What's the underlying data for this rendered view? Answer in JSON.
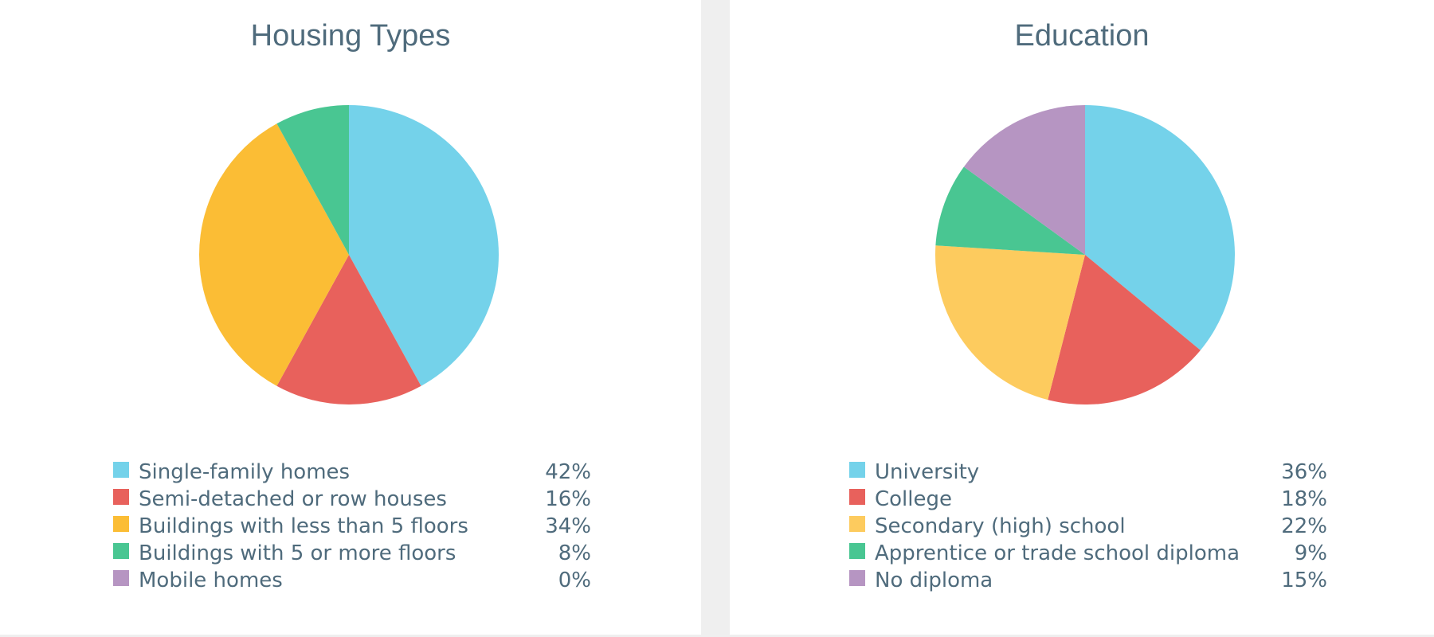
{
  "chart_data": [
    {
      "type": "pie",
      "title": "Housing Types",
      "slices": [
        {
          "label": "Single-family homes",
          "value": 42,
          "display": "42%",
          "color": "#74d2ea"
        },
        {
          "label": "Semi-detached or row houses",
          "value": 16,
          "display": "16%",
          "color": "#e8615c"
        },
        {
          "label": "Buildings with less than 5 floors",
          "value": 34,
          "display": "34%",
          "color": "#fbbd35"
        },
        {
          "label": "Buildings with 5 or more floors",
          "value": 8,
          "display": "8%",
          "color": "#49c692"
        },
        {
          "label": "Mobile homes",
          "value": 0,
          "display": "0%",
          "color": "#b695c2"
        }
      ],
      "legend_position": "bottom"
    },
    {
      "type": "pie",
      "title": "Education",
      "slices": [
        {
          "label": "University",
          "value": 36,
          "display": "36%",
          "color": "#74d2ea"
        },
        {
          "label": "College",
          "value": 18,
          "display": "18%",
          "color": "#e8615c"
        },
        {
          "label": "Secondary (high) school",
          "value": 22,
          "display": "22%",
          "color": "#fdcb5e"
        },
        {
          "label": "Apprentice or trade school diploma",
          "value": 9,
          "display": "9%",
          "color": "#49c692"
        },
        {
          "label": "No diploma",
          "value": 15,
          "display": "15%",
          "color": "#b695c2"
        }
      ],
      "legend_position": "bottom"
    }
  ]
}
